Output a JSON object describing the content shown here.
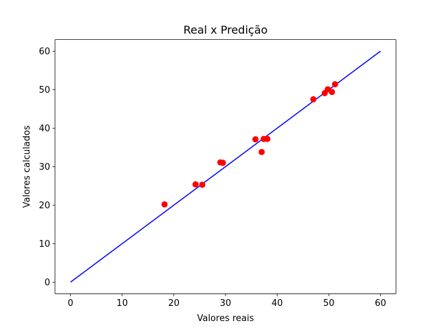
{
  "chart_data": {
    "type": "scatter",
    "title": "Real x Predição",
    "xlabel": "Valores reais",
    "ylabel": "Valores calculados",
    "xlim": [
      -3,
      63
    ],
    "ylim": [
      -3,
      63
    ],
    "xticks": [
      0,
      10,
      20,
      30,
      40,
      50,
      60
    ],
    "yticks": [
      0,
      10,
      20,
      30,
      40,
      50,
      60
    ],
    "grid": false,
    "legend": "none",
    "series": [
      {
        "kind": "line",
        "color": "#0000ff",
        "points": [
          [
            0,
            0
          ],
          [
            60,
            60
          ]
        ]
      },
      {
        "kind": "scatter",
        "color": "#ff0000",
        "points": [
          [
            18.2,
            20.2
          ],
          [
            24.2,
            25.4
          ],
          [
            25.5,
            25.3
          ],
          [
            29.0,
            31.1
          ],
          [
            29.5,
            31.0
          ],
          [
            35.8,
            37.1
          ],
          [
            37.0,
            33.8
          ],
          [
            37.4,
            37.2
          ],
          [
            38.1,
            37.2
          ],
          [
            47.0,
            47.5
          ],
          [
            49.2,
            49.1
          ],
          [
            49.8,
            50.1
          ],
          [
            50.6,
            49.4
          ],
          [
            51.2,
            51.4
          ]
        ]
      }
    ]
  }
}
